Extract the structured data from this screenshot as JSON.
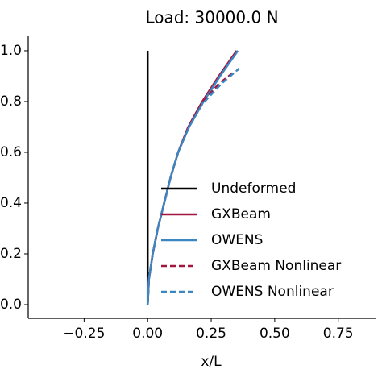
{
  "chart_data": {
    "type": "line",
    "title": "Load: 30000.0 N",
    "x_label": "x/L",
    "xlim": [
      -0.47,
      0.9
    ],
    "ylim": [
      -0.054,
      1.057
    ],
    "xticks": [
      {
        "value": -0.25,
        "label": "−0.25"
      },
      {
        "value": 0,
        "label": "0.00"
      },
      {
        "value": 0.25,
        "label": "0.25"
      },
      {
        "value": 0.5,
        "label": "0.50"
      },
      {
        "value": 0.75,
        "label": "0.75"
      }
    ],
    "yticks": [
      {
        "value": 0,
        "label": "0.0"
      },
      {
        "value": 0.2,
        "label": "0.2"
      },
      {
        "value": 0.4,
        "label": "0.4"
      },
      {
        "value": 0.6,
        "label": "0.6"
      },
      {
        "value": 0.8,
        "label": "0.8"
      },
      {
        "value": 1.0,
        "label": "1.0"
      }
    ],
    "series": [
      {
        "name": "Undeformed",
        "color": "#000000",
        "dash": false,
        "x": [
          0,
          0
        ],
        "values": [
          0,
          1.0
        ]
      },
      {
        "name": "GXBeam",
        "color": "#a3173f",
        "dash": false,
        "x": [
          0,
          0.005,
          0.02,
          0.04,
          0.065,
          0.09,
          0.12,
          0.16,
          0.215,
          0.28,
          0.35
        ],
        "values": [
          0,
          0.1,
          0.2,
          0.3,
          0.4,
          0.5,
          0.6,
          0.7,
          0.8,
          0.9,
          1.0
        ]
      },
      {
        "name": "OWENS",
        "color": "#3b87c1",
        "dash": false,
        "x": [
          0,
          0.005,
          0.02,
          0.04,
          0.065,
          0.09,
          0.12,
          0.163,
          0.22,
          0.285,
          0.355
        ],
        "values": [
          0,
          0.1,
          0.2,
          0.3,
          0.4,
          0.5,
          0.6,
          0.7,
          0.8,
          0.9,
          1.0
        ]
      },
      {
        "name": "GXBeam Nonlinear",
        "color": "#a3173f",
        "dash": true,
        "x": [
          0,
          0.005,
          0.02,
          0.04,
          0.065,
          0.09,
          0.12,
          0.16,
          0.21,
          0.28,
          0.345
        ],
        "values": [
          0,
          0.1,
          0.2,
          0.3,
          0.4,
          0.5,
          0.6,
          0.7,
          0.79,
          0.87,
          0.92
        ]
      },
      {
        "name": "OWENS Nonlinear",
        "color": "#3b87c1",
        "dash": true,
        "x": [
          0,
          0.005,
          0.02,
          0.04,
          0.065,
          0.09,
          0.12,
          0.163,
          0.215,
          0.29,
          0.36
        ],
        "values": [
          0,
          0.1,
          0.2,
          0.3,
          0.4,
          0.5,
          0.6,
          0.7,
          0.79,
          0.87,
          0.93
        ]
      }
    ]
  }
}
